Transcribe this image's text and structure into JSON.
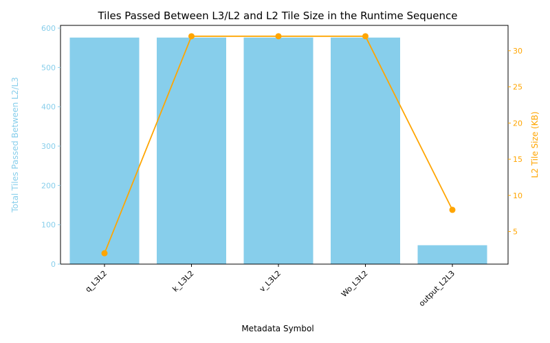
{
  "chart_data": {
    "type": "bar+line",
    "title": "Tiles Passed Between L3/L2 and L2 Tile Size in the Runtime Sequence",
    "xlabel": "Metadata Symbol",
    "categories": [
      "q_L3L2",
      "k_L3L2",
      "v_L3L2",
      "Wo_L3L2",
      "output_L2L3"
    ],
    "left_axis": {
      "label": "Total Tiles Passed Between L2/L3",
      "ticks": [
        0,
        100,
        200,
        300,
        400,
        500,
        600
      ],
      "ylim": [
        0,
        607
      ],
      "color": "#87CEEB"
    },
    "right_axis": {
      "label": "L2 Tile Size (KB)",
      "ticks": [
        5,
        10,
        15,
        20,
        25,
        30
      ],
      "ylim": [
        0.5,
        33.5
      ],
      "color": "#FFA500"
    },
    "bars": {
      "axis": "left",
      "values": [
        576,
        576,
        576,
        576,
        48
      ]
    },
    "line": {
      "axis": "right",
      "values": [
        2,
        32,
        32,
        32,
        8
      ]
    },
    "grid": false,
    "legend": "none"
  }
}
